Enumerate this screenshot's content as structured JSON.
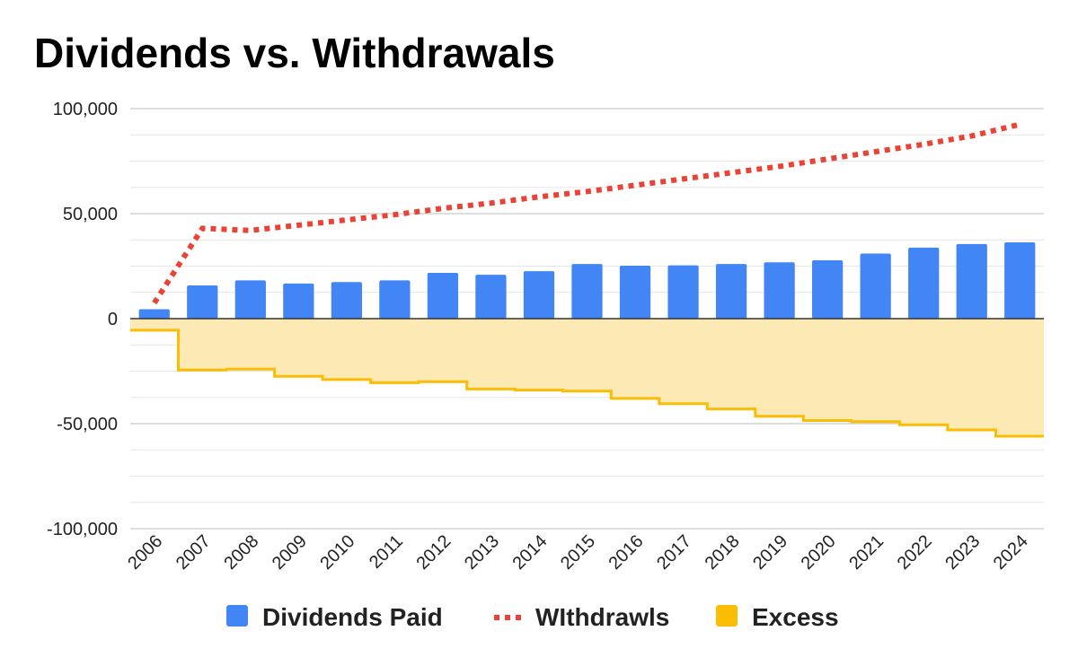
{
  "chart_data": {
    "type": "bar",
    "title": "Dividends vs. Withdrawals",
    "categories": [
      "2006",
      "2007",
      "2008",
      "2009",
      "2010",
      "2011",
      "2012",
      "2013",
      "2014",
      "2015",
      "2016",
      "2017",
      "2018",
      "2019",
      "2020",
      "2021",
      "2022",
      "2023",
      "2024"
    ],
    "ylim": [
      -100000,
      100000
    ],
    "y_ticks": [
      100000,
      50000,
      0,
      -50000,
      -100000
    ],
    "y_tick_labels": [
      "100,000",
      "50,000",
      "0",
      "-50,000",
      "-100,000"
    ],
    "grid": true,
    "legend_position": "bottom",
    "series": [
      {
        "name": "Dividends Paid",
        "type": "bar",
        "color": "#4285f4",
        "values": [
          4500,
          15800,
          18200,
          16700,
          17400,
          18200,
          21800,
          20900,
          22600,
          26000,
          25200,
          25400,
          26000,
          26800,
          27800,
          31000,
          33800,
          35500,
          36300
        ]
      },
      {
        "name": "WIthdrawls",
        "type": "line",
        "style": "dotted",
        "color": "#ea4335",
        "values": [
          7500,
          43000,
          42000,
          44500,
          47000,
          49500,
          52500,
          55000,
          58000,
          60500,
          63500,
          66500,
          69500,
          72500,
          76000,
          79500,
          83000,
          87000,
          92500
        ]
      },
      {
        "name": "Excess",
        "type": "stepped-area",
        "color": "#fbbc04",
        "fill": "#fde9b4",
        "values": [
          -5500,
          -24500,
          -24000,
          -27500,
          -29000,
          -30500,
          -30000,
          -33500,
          -34000,
          -34500,
          -38000,
          -40500,
          -43000,
          -46500,
          -48500,
          -49000,
          -50500,
          -53000,
          -56000
        ]
      }
    ]
  }
}
